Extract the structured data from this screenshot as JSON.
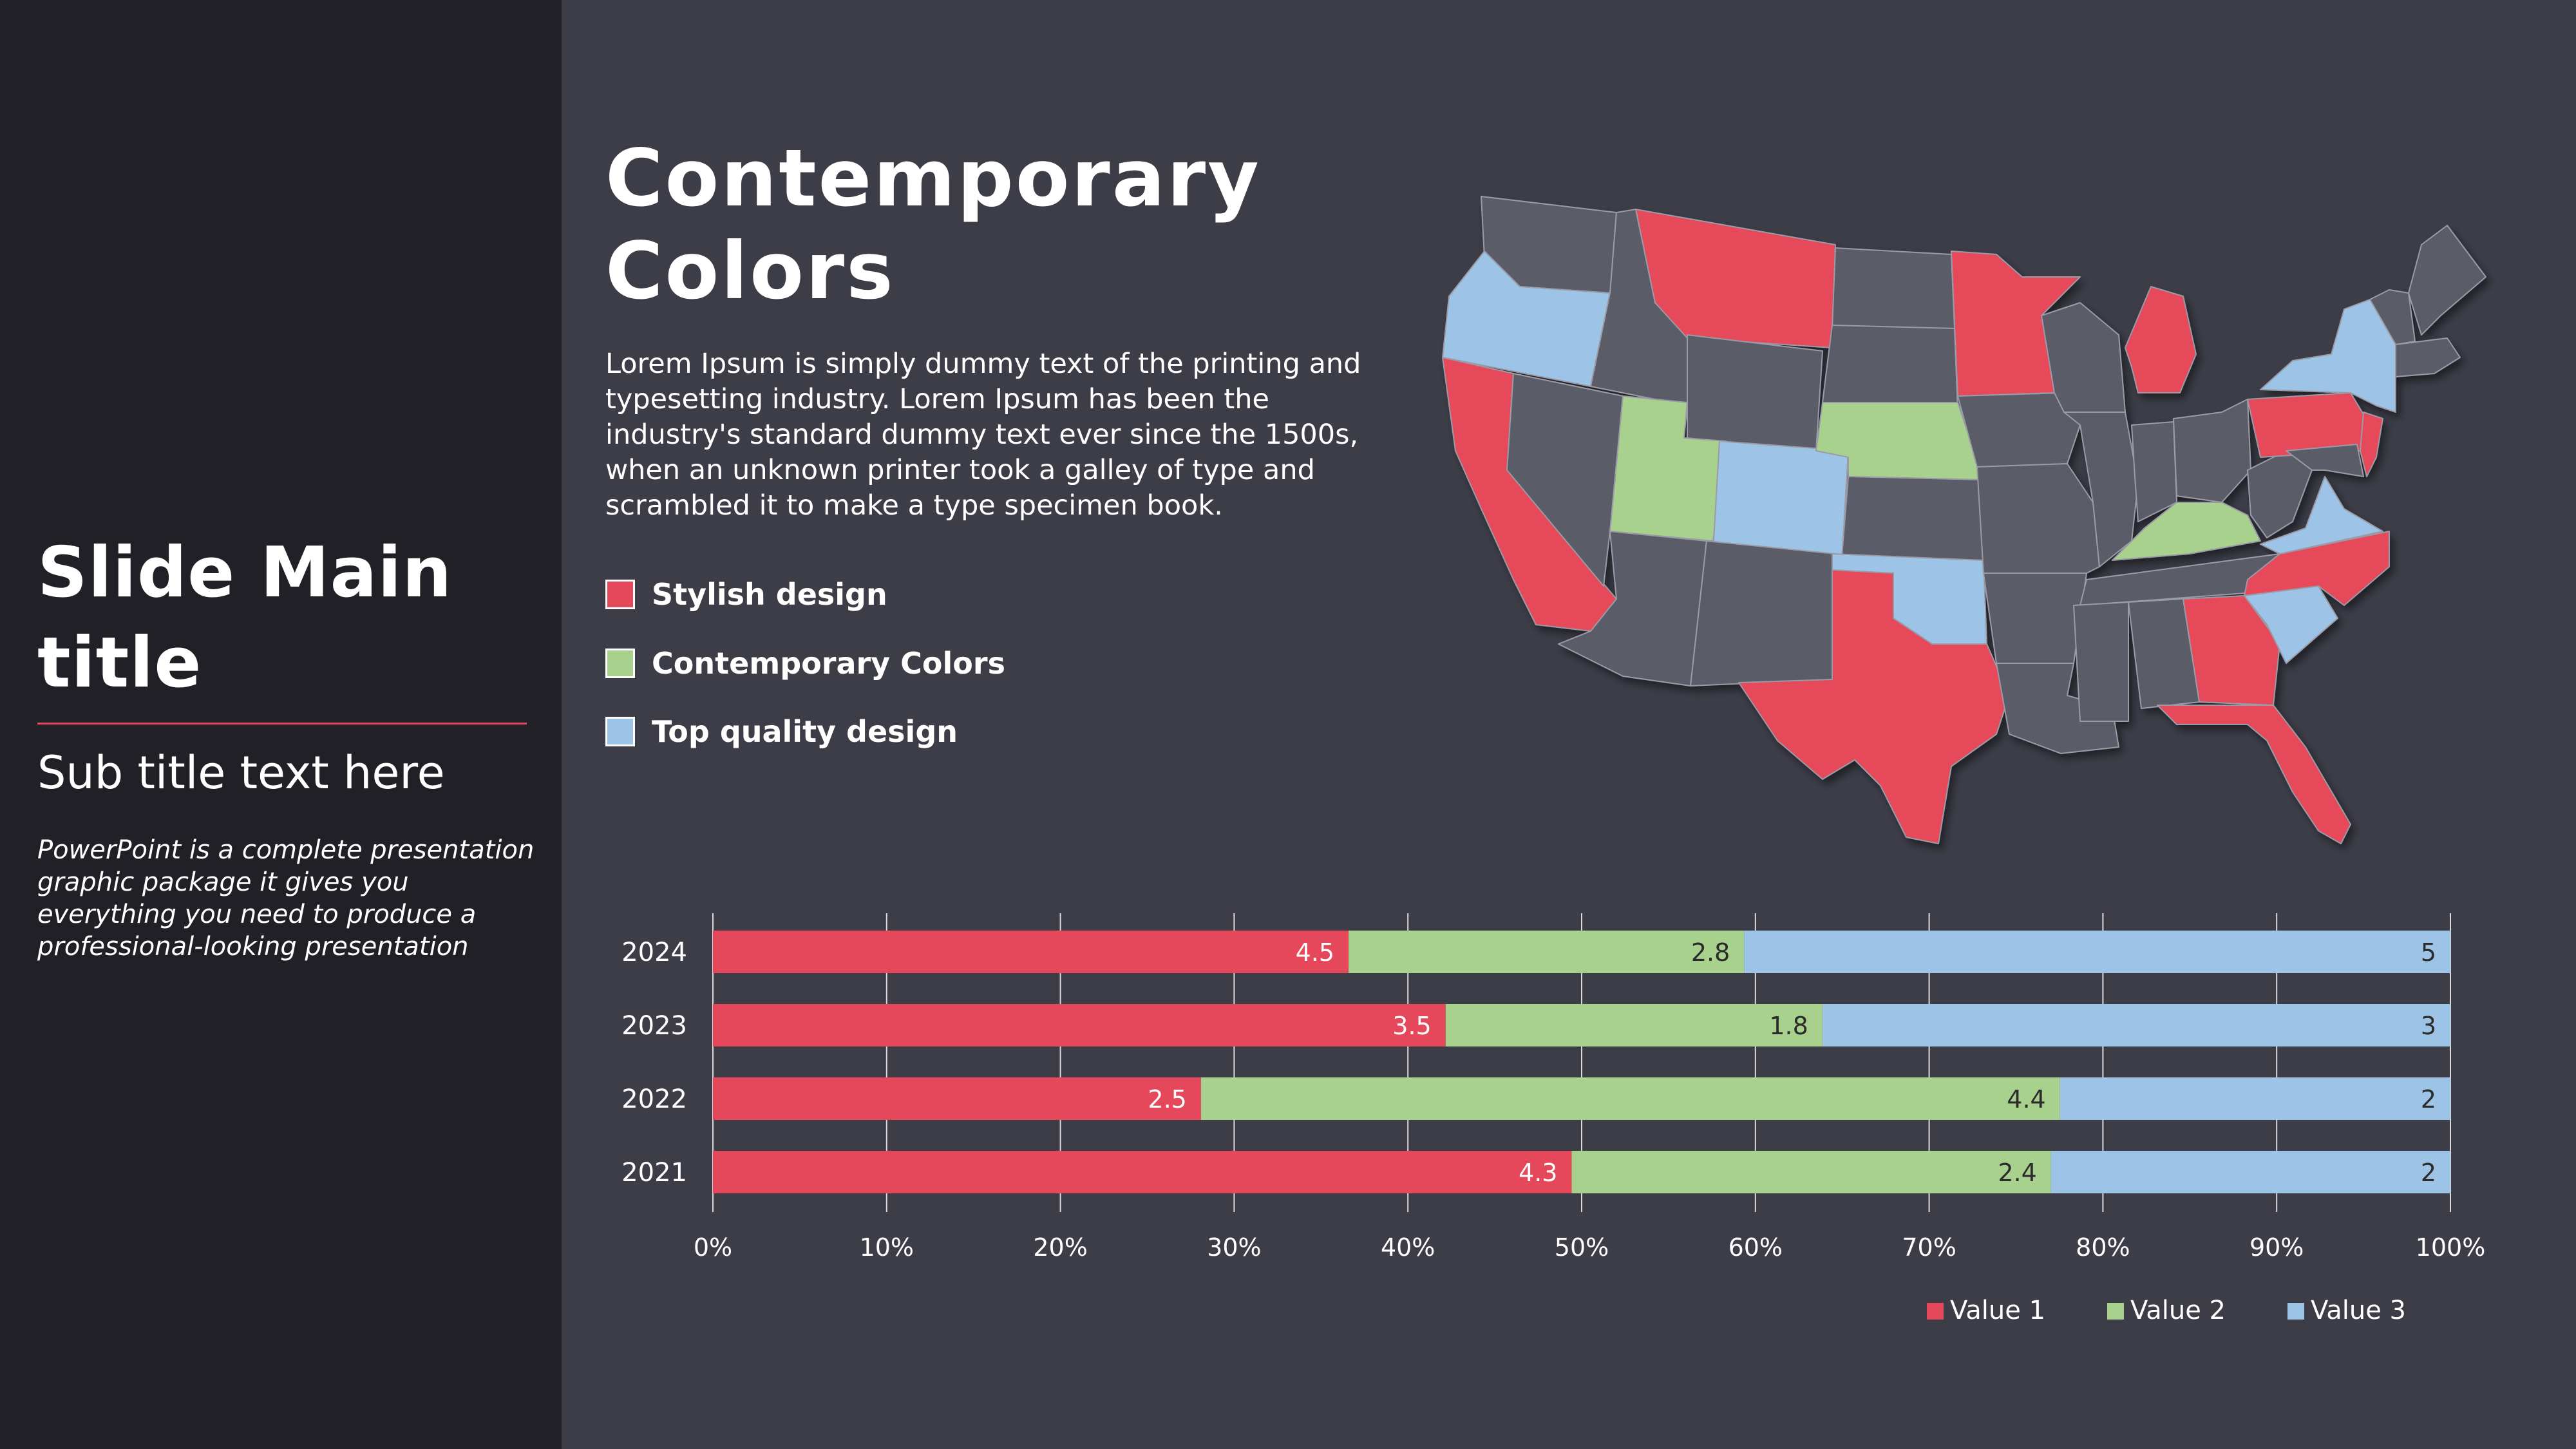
{
  "left_panel": {
    "title": "Slide Main title",
    "subtitle": "Sub title text here",
    "description": "PowerPoint is a complete presentation graphic package it gives you everything you need to produce a professional-looking presentation"
  },
  "content": {
    "title": "Contemporary Colors",
    "description": "Lorem Ipsum is simply dummy text of the printing and typesetting industry. Lorem Ipsum has been the industry's standard dummy text ever since the 1500s, when an unknown printer took a galley of type and scrambled it to make a type specimen book."
  },
  "map_legend": [
    {
      "label": "Stylish design",
      "color": "#e5485a"
    },
    {
      "label": "Contemporary Colors",
      "color": "#a8d18d"
    },
    {
      "label": "Top quality design",
      "color": "#9dc3e6"
    }
  ],
  "map": {
    "base_color": "#5a5b68",
    "groups": {
      "Stylish design": [
        "California",
        "Montana",
        "Minnesota",
        "Michigan",
        "Texas",
        "Georgia",
        "Florida",
        "North Carolina",
        "Pennsylvania",
        "New Jersey"
      ],
      "Contemporary Colors": [
        "Utah",
        "Nebraska",
        "Kentucky"
      ],
      "Top quality design": [
        "Oregon",
        "Colorado",
        "Oklahoma",
        "New York",
        "Virginia",
        "South Carolina"
      ]
    }
  },
  "colors": {
    "value1": "#e5485a",
    "value2": "#a8d18d",
    "value3": "#9dc3e6",
    "background": "#3c3d47",
    "sidebar": "#202026"
  },
  "chart_data": {
    "type": "bar",
    "orientation": "horizontal",
    "stacked": "100%",
    "categories": [
      "2024",
      "2023",
      "2022",
      "2021"
    ],
    "series": [
      {
        "name": "Value  1",
        "values": [
          4.5,
          3.5,
          2.5,
          4.3
        ]
      },
      {
        "name": "Value  2",
        "values": [
          2.8,
          1.8,
          4.4,
          2.4
        ]
      },
      {
        "name": "Value  3",
        "values": [
          5,
          3,
          2,
          2
        ]
      }
    ],
    "x_ticks": [
      "0%",
      "10%",
      "20%",
      "30%",
      "40%",
      "50%",
      "60%",
      "70%",
      "80%",
      "90%",
      "100%"
    ],
    "xlim": [
      0,
      100
    ],
    "grid": true,
    "legend_position": "bottom-right"
  }
}
